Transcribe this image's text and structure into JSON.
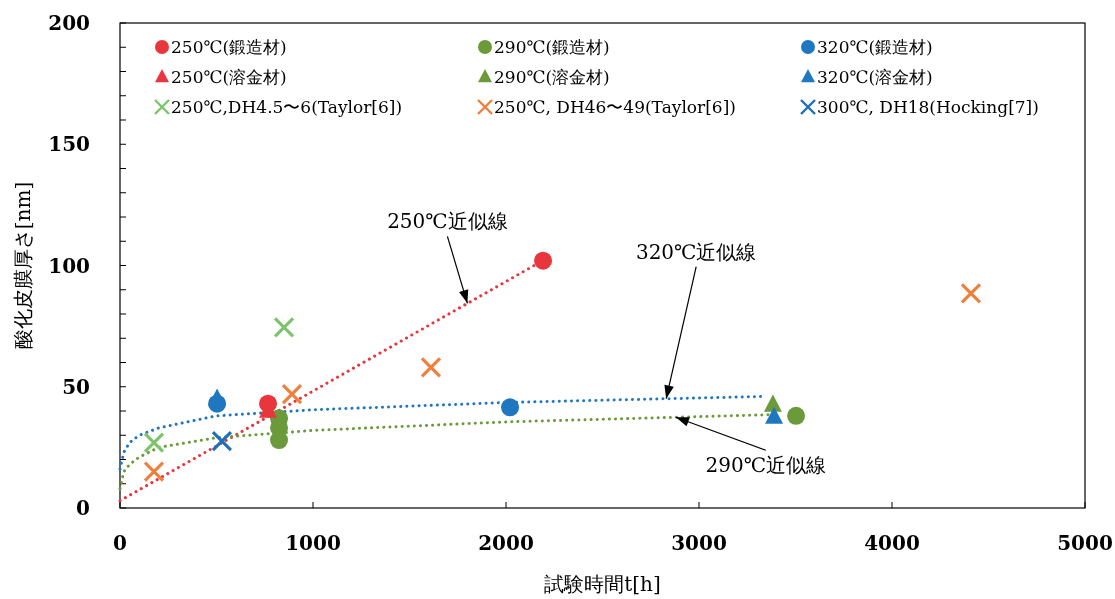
{
  "chart_data": {
    "type": "scatter",
    "xlabel": "試験時間t[h]",
    "ylabel": "酸化皮膜厚さ[nm]",
    "xlim": [
      0,
      5000
    ],
    "xticks": [
      0,
      1000,
      2000,
      3000,
      4000,
      5000
    ],
    "ylim": [
      0,
      200
    ],
    "yticks": [
      0,
      {
        "value": 10,
        "label": null
      },
      {
        "value": 20,
        "label": null
      },
      {
        "value": 30,
        "label": null
      },
      {
        "value": 40,
        "label": null
      },
      50,
      {
        "value": 60,
        "label": null
      },
      {
        "value": 70,
        "label": null
      },
      {
        "value": 80,
        "label": null
      },
      {
        "value": 90,
        "label": null
      },
      100,
      {
        "value": 110,
        "label": null
      },
      {
        "value": 120,
        "label": null
      },
      {
        "value": 130,
        "label": null
      },
      {
        "value": 140,
        "label": null
      },
      150,
      {
        "value": 160,
        "label": null
      },
      {
        "value": 170,
        "label": null
      },
      {
        "value": 180,
        "label": null
      },
      {
        "value": 190,
        "label": null
      },
      200
    ],
    "grid": false,
    "legend": "top",
    "series": [
      {
        "type": "line",
        "line_style": "dotted",
        "marker": "none",
        "color": "#e8363c",
        "x": [
          0,
          500,
          1000,
          1500,
          2190
        ],
        "values": [
          3,
          25.6,
          48.2,
          70.8,
          102
        ]
      },
      {
        "type": "line",
        "line_style": "dotted",
        "marker": "none",
        "color": "#1f77c0",
        "x": [
          0,
          20,
          50,
          100,
          200,
          500,
          1000,
          2000,
          3340
        ],
        "values": [
          16,
          23,
          27,
          30,
          33,
          38,
          40.5,
          43.5,
          46
        ]
      },
      {
        "type": "line",
        "line_style": "dotted",
        "marker": "none",
        "color": "#6a9a3a",
        "x": [
          0,
          20,
          50,
          100,
          200,
          500,
          1000,
          2000,
          3380
        ],
        "values": [
          8,
          15,
          18,
          21,
          25,
          29,
          32,
          35.5,
          38.5
        ]
      },
      {
        "name": "250℃(鍛造材)",
        "marker": "circle",
        "color": "#e8363c",
        "x": [
          767,
          2192
        ],
        "values": [
          43,
          102
        ]
      },
      {
        "name": "290℃(鍛造材)",
        "marker": "circle",
        "color": "#6a9a3a",
        "x": [
          824,
          824,
          824,
          3503
        ],
        "values": [
          37,
          33,
          28,
          38
        ]
      },
      {
        "name": "320℃(鍛造材)",
        "marker": "circle",
        "color": "#1f77c0",
        "x": [
          503,
          2021
        ],
        "values": [
          43,
          41.5
        ]
      },
      {
        "name": "250℃(溶金材)",
        "marker": "triangle",
        "color": "#e8363c",
        "x": [
          767
        ],
        "values": [
          40
        ]
      },
      {
        "name": "290℃(溶金材)",
        "marker": "triangle",
        "color": "#6a9a3a",
        "x": [
          3383
        ],
        "values": [
          42.5
        ]
      },
      {
        "name": "320℃(溶金材)",
        "marker": "triangle",
        "color": "#1f77c0",
        "x": [
          503,
          3389
        ],
        "values": [
          45,
          37.5
        ]
      },
      {
        "name": "250℃,DH4.5〜6(Taylor[6])",
        "marker": "cross",
        "color": "#7dc36b",
        "x": [
          176,
          850
        ],
        "values": [
          27,
          74.5
        ]
      },
      {
        "name": "250℃, DH46〜49(Taylor[6])",
        "marker": "cross",
        "color": "#f07f3c",
        "x": [
          176,
          891,
          1611,
          4409
        ],
        "values": [
          15,
          47,
          58,
          88.5
        ]
      },
      {
        "name": "300℃, DH18(Hocking[7])",
        "marker": "cross",
        "color": "#1f6fb8",
        "x": [
          528
        ],
        "values": [
          27.6
        ]
      }
    ],
    "annotations": [
      {
        "text": "250℃近似線",
        "x": 1800,
        "y": 84.4
      },
      {
        "text": "320℃近似線",
        "x": 2830,
        "y": 45.1
      },
      {
        "text": "290℃近似線",
        "x": 2880,
        "y": 37.4
      }
    ]
  }
}
